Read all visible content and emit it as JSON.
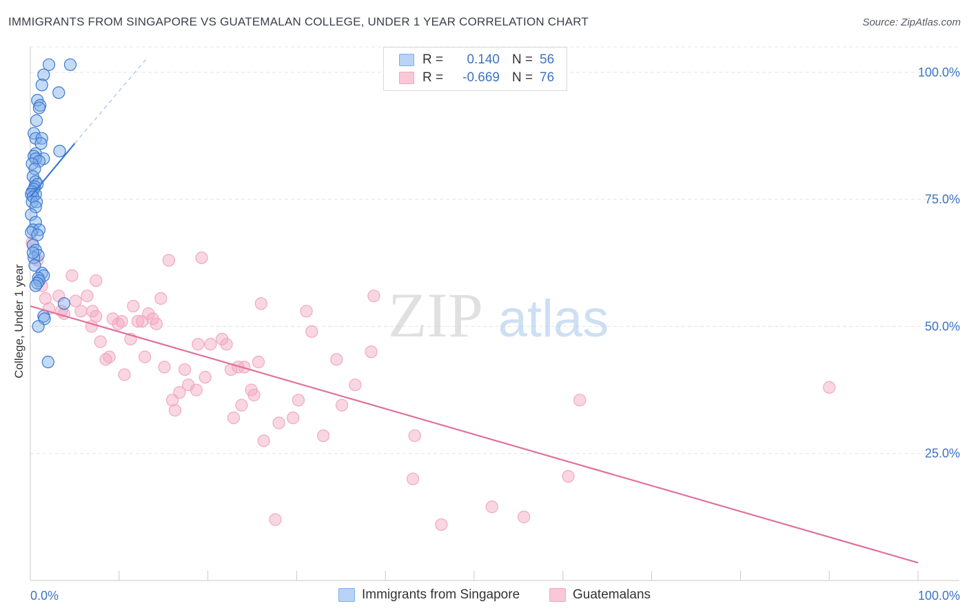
{
  "title": "IMMIGRANTS FROM SINGAPORE VS GUATEMALAN COLLEGE, UNDER 1 YEAR CORRELATION CHART",
  "source": "Source: ZipAtlas.com",
  "watermark": {
    "zip": "ZIP",
    "atlas": "atlas"
  },
  "colors": {
    "blue": "#7eaee8",
    "blue_line": "#3b78d0",
    "pink": "#f2a7bf",
    "pink_line": "#e0709a",
    "tick_label": "#3b73c4"
  },
  "legend": {
    "rows": [
      {
        "r_label": "R =",
        "r_value": "0.140",
        "n_label": "N =",
        "n_value": "56"
      },
      {
        "r_label": "R =",
        "r_value": "-0.669",
        "n_label": "N =",
        "n_value": "76"
      }
    ]
  },
  "bottom_legend": [
    "Immigrants from Singapore",
    "Guatemalans"
  ],
  "chart_data": {
    "type": "scatter",
    "title": "IMMIGRANTS FROM SINGAPORE VS GUATEMALAN COLLEGE, UNDER 1 YEAR CORRELATION CHART",
    "xlabel": "",
    "ylabel": "College, Under 1 year",
    "xlim": [
      0,
      100
    ],
    "ylim": [
      0,
      105
    ],
    "x_tick_labels": [
      "0.0%",
      "100.0%"
    ],
    "y_ticks": [
      25,
      50,
      75,
      100
    ],
    "y_tick_labels": [
      "25.0%",
      "50.0%",
      "75.0%",
      "100.0%"
    ],
    "grid": true,
    "legend_position": "top-center",
    "series": [
      {
        "name": "Immigrants from Singapore",
        "color": "#7eaee8",
        "points": [
          [
            2.1,
            101.5
          ],
          [
            4.5,
            101.5
          ],
          [
            1.5,
            99.5
          ],
          [
            1.3,
            97.5
          ],
          [
            3.2,
            96.0
          ],
          [
            0.8,
            94.5
          ],
          [
            1.1,
            93.5
          ],
          [
            1.0,
            93.0
          ],
          [
            0.7,
            90.5
          ],
          [
            0.4,
            88.0
          ],
          [
            0.6,
            87.0
          ],
          [
            1.3,
            87.0
          ],
          [
            1.2,
            86.0
          ],
          [
            3.3,
            84.5
          ],
          [
            0.6,
            84.0
          ],
          [
            0.4,
            83.5
          ],
          [
            1.5,
            83.0
          ],
          [
            0.6,
            83.0
          ],
          [
            1.0,
            82.5
          ],
          [
            0.2,
            82.0
          ],
          [
            0.5,
            81.0
          ],
          [
            0.3,
            79.5
          ],
          [
            0.6,
            78.5
          ],
          [
            0.8,
            78.0
          ],
          [
            0.5,
            77.5
          ],
          [
            0.4,
            77.0
          ],
          [
            0.2,
            76.5
          ],
          [
            0.6,
            76.0
          ],
          [
            0.1,
            76.0
          ],
          [
            0.3,
            75.5
          ],
          [
            0.2,
            74.5
          ],
          [
            0.7,
            74.5
          ],
          [
            0.6,
            73.5
          ],
          [
            0.1,
            72.0
          ],
          [
            0.6,
            70.5
          ],
          [
            0.3,
            69.0
          ],
          [
            1.0,
            69.0
          ],
          [
            0.1,
            68.5
          ],
          [
            0.8,
            68.0
          ],
          [
            0.3,
            66.0
          ],
          [
            0.6,
            65.0
          ],
          [
            0.9,
            64.0
          ],
          [
            0.4,
            63.5
          ],
          [
            1.3,
            60.5
          ],
          [
            1.5,
            60.0
          ],
          [
            0.9,
            59.5
          ],
          [
            1.0,
            59.0
          ],
          [
            0.8,
            58.5
          ],
          [
            0.6,
            58.0
          ],
          [
            3.8,
            54.5
          ],
          [
            1.5,
            52.0
          ],
          [
            1.6,
            51.5
          ],
          [
            0.9,
            50.0
          ],
          [
            2.0,
            43.0
          ],
          [
            0.5,
            62.0
          ],
          [
            0.3,
            64.5
          ]
        ],
        "trend": [
          [
            0.0,
            75.5
          ],
          [
            5.0,
            86.0
          ]
        ],
        "trend_extension": [
          [
            5.0,
            86.0
          ],
          [
            13.0,
            102.5
          ]
        ]
      },
      {
        "name": "Guatemalans",
        "color": "#f2a7bf",
        "points": [
          [
            0.2,
            66.5
          ],
          [
            0.8,
            63.0
          ],
          [
            1.3,
            58.0
          ],
          [
            1.7,
            55.5
          ],
          [
            2.1,
            53.5
          ],
          [
            3.2,
            56.0
          ],
          [
            3.5,
            53.0
          ],
          [
            3.8,
            52.5
          ],
          [
            4.7,
            60.0
          ],
          [
            5.1,
            55.0
          ],
          [
            6.4,
            56.0
          ],
          [
            5.7,
            53.0
          ],
          [
            7.0,
            53.0
          ],
          [
            7.4,
            52.0
          ],
          [
            6.9,
            50.0
          ],
          [
            7.4,
            59.0
          ],
          [
            7.9,
            47.0
          ],
          [
            8.5,
            43.5
          ],
          [
            8.9,
            44.0
          ],
          [
            9.3,
            51.5
          ],
          [
            9.9,
            50.5
          ],
          [
            10.3,
            51.0
          ],
          [
            10.6,
            40.5
          ],
          [
            11.3,
            47.5
          ],
          [
            11.6,
            54.0
          ],
          [
            12.1,
            51.0
          ],
          [
            12.6,
            51.0
          ],
          [
            12.9,
            44.0
          ],
          [
            13.3,
            52.5
          ],
          [
            13.8,
            51.5
          ],
          [
            14.2,
            50.5
          ],
          [
            14.7,
            55.5
          ],
          [
            15.1,
            42.0
          ],
          [
            15.6,
            63.0
          ],
          [
            16.0,
            35.5
          ],
          [
            16.3,
            33.5
          ],
          [
            16.8,
            37.0
          ],
          [
            17.4,
            41.5
          ],
          [
            17.8,
            38.5
          ],
          [
            18.7,
            37.5
          ],
          [
            18.9,
            46.5
          ],
          [
            19.3,
            63.5
          ],
          [
            19.7,
            40.0
          ],
          [
            20.3,
            46.5
          ],
          [
            21.6,
            47.5
          ],
          [
            22.1,
            46.5
          ],
          [
            22.6,
            41.5
          ],
          [
            22.9,
            32.0
          ],
          [
            23.4,
            42.0
          ],
          [
            23.8,
            34.5
          ],
          [
            24.1,
            42.0
          ],
          [
            24.9,
            37.5
          ],
          [
            25.2,
            36.5
          ],
          [
            25.7,
            43.0
          ],
          [
            26.0,
            54.5
          ],
          [
            26.3,
            27.5
          ],
          [
            27.6,
            12.0
          ],
          [
            28.0,
            31.0
          ],
          [
            29.6,
            32.0
          ],
          [
            30.2,
            35.5
          ],
          [
            31.1,
            53.0
          ],
          [
            31.7,
            49.0
          ],
          [
            33.0,
            28.5
          ],
          [
            34.5,
            43.5
          ],
          [
            35.1,
            34.5
          ],
          [
            36.6,
            38.5
          ],
          [
            38.4,
            45.0
          ],
          [
            38.7,
            56.0
          ],
          [
            43.1,
            20.0
          ],
          [
            43.3,
            28.5
          ],
          [
            46.3,
            11.0
          ],
          [
            52.0,
            14.5
          ],
          [
            55.6,
            12.5
          ],
          [
            60.6,
            20.5
          ],
          [
            61.9,
            35.5
          ],
          [
            90.0,
            38.0
          ]
        ],
        "trend": [
          [
            0.0,
            54.0
          ],
          [
            100.0,
            3.5
          ]
        ]
      }
    ]
  }
}
